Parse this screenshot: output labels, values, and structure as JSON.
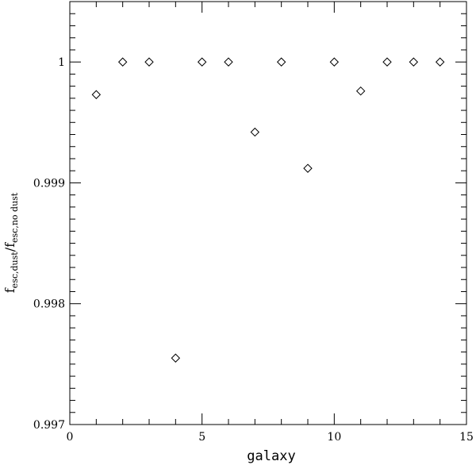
{
  "chart_data": {
    "type": "scatter",
    "marker": "diamond",
    "xlabel": "galaxy",
    "ylabel": {
      "main": "f",
      "sub1": "esc,dust",
      "sep": "/",
      "main2": "f",
      "sub2": "esc,no dust"
    },
    "xlim": [
      0,
      15
    ],
    "ylim": [
      0.997,
      1.0005
    ],
    "x_ticks": [
      {
        "value": 0,
        "label": "0"
      },
      {
        "value": 5,
        "label": "5"
      },
      {
        "value": 10,
        "label": "10"
      },
      {
        "value": 15,
        "label": "15"
      }
    ],
    "y_ticks": [
      {
        "value": 0.997,
        "label": "0.997"
      },
      {
        "value": 0.998,
        "label": "0.998"
      },
      {
        "value": 0.999,
        "label": "0.999"
      },
      {
        "value": 1.0,
        "label": "1"
      }
    ],
    "series": [
      {
        "points": [
          {
            "x": 1,
            "y": 0.99973
          },
          {
            "x": 2,
            "y": 1.0
          },
          {
            "x": 3,
            "y": 1.0
          },
          {
            "x": 4,
            "y": 0.99755
          },
          {
            "x": 5,
            "y": 1.0
          },
          {
            "x": 6,
            "y": 1.0
          },
          {
            "x": 7,
            "y": 0.99942
          },
          {
            "x": 8,
            "y": 1.0
          },
          {
            "x": 9,
            "y": 0.99912
          },
          {
            "x": 10,
            "y": 1.0
          },
          {
            "x": 11,
            "y": 0.99976
          },
          {
            "x": 12,
            "y": 1.0
          },
          {
            "x": 13,
            "y": 1.0
          },
          {
            "x": 14,
            "y": 1.0
          }
        ]
      }
    ],
    "grid": false,
    "mirrored_ticks": true
  }
}
